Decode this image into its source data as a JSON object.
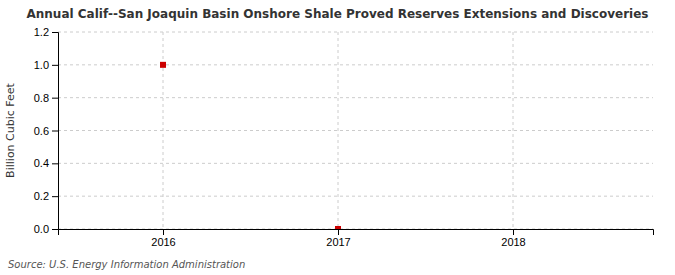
{
  "chart_data": {
    "type": "scatter",
    "title": "Annual Calif--San Joaquin Basin Onshore Shale Proved Reserves Extensions and Discoveries",
    "y_label": "Billion Cubic Feet",
    "source": "Source: U.S. Energy Information Administration",
    "x": [
      2016,
      2017
    ],
    "values": [
      1.0,
      0.0
    ],
    "color": "#cc0000",
    "marker": "square",
    "xlim": [
      2015.4,
      2018.8
    ],
    "xticks": [
      2016,
      2017,
      2018
    ],
    "ylim": [
      0.0,
      1.2
    ],
    "yticks": [
      {
        "value": 0.0,
        "label": "0.0"
      },
      0.2,
      0.4,
      0.6,
      0.8,
      {
        "value": 1.0,
        "label": "1.0"
      },
      1.2
    ],
    "grid": true
  }
}
